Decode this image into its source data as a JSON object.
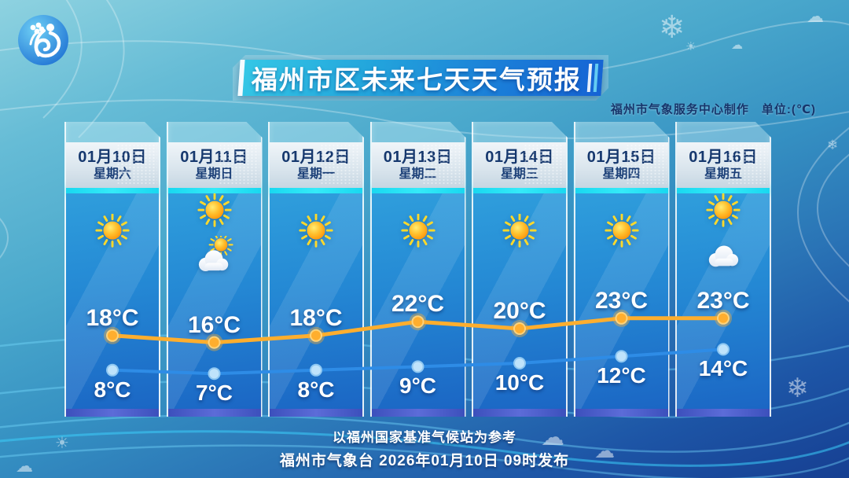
{
  "meta": {
    "title": "福州市区未来七天天气预报",
    "credit": "福州市气象服务中心制作　单位:(℃)",
    "footer_line1": "以福州国家基准气候站为参考",
    "footer_line2": "福州市气象台 2026年01月10日 09时发布",
    "logo": "fuzhou-meteorological-service-logo"
  },
  "days": [
    {
      "date": "01月10日",
      "weekday": "星期六",
      "icons": [
        "sunny"
      ],
      "high": 18,
      "low": 8,
      "high_label": "18°C",
      "low_label": "8°C"
    },
    {
      "date": "01月11日",
      "weekday": "星期日",
      "icons": [
        "sunny",
        "partly-cloudy"
      ],
      "high": 16,
      "low": 7,
      "high_label": "16°C",
      "low_label": "7°C"
    },
    {
      "date": "01月12日",
      "weekday": "星期一",
      "icons": [
        "sunny"
      ],
      "high": 18,
      "low": 8,
      "high_label": "18°C",
      "low_label": "8°C"
    },
    {
      "date": "01月13日",
      "weekday": "星期二",
      "icons": [
        "sunny"
      ],
      "high": 22,
      "low": 9,
      "high_label": "22°C",
      "low_label": "9°C"
    },
    {
      "date": "01月14日",
      "weekday": "星期三",
      "icons": [
        "sunny"
      ],
      "high": 20,
      "low": 10,
      "high_label": "20°C",
      "low_label": "10°C"
    },
    {
      "date": "01月15日",
      "weekday": "星期四",
      "icons": [
        "sunny"
      ],
      "high": 23,
      "low": 12,
      "high_label": "23°C",
      "low_label": "12°C"
    },
    {
      "date": "01月16日",
      "weekday": "星期五",
      "icons": [
        "sunny",
        "cloudy"
      ],
      "high": 23,
      "low": 14,
      "high_label": "23°C",
      "low_label": "14°C"
    }
  ],
  "chart_data": {
    "type": "line",
    "title": "福州市区未来七天天气预报",
    "categories": [
      "01月10日",
      "01月11日",
      "01月12日",
      "01月13日",
      "01月14日",
      "01月15日",
      "01月16日"
    ],
    "series": [
      {
        "name": "最高气温",
        "values": [
          18,
          16,
          18,
          22,
          20,
          23,
          23
        ],
        "color": "#ffae2e"
      },
      {
        "name": "最低气温",
        "values": [
          8,
          7,
          8,
          9,
          10,
          12,
          14
        ],
        "color": "#2e8ce6"
      }
    ],
    "unit": "℃",
    "ylim": [
      5,
      25
    ],
    "grid": false,
    "legend": "none"
  },
  "colors": {
    "banner_start": "#35c8e6",
    "banner_end": "#1563d4",
    "cyan_strip": "#19d8f0",
    "column_body_top": "#2f9edc",
    "column_body_bottom": "#1b66c4",
    "high_line": "#ffae2e",
    "low_line": "#2e8ce6",
    "date_text": "#16386e"
  }
}
